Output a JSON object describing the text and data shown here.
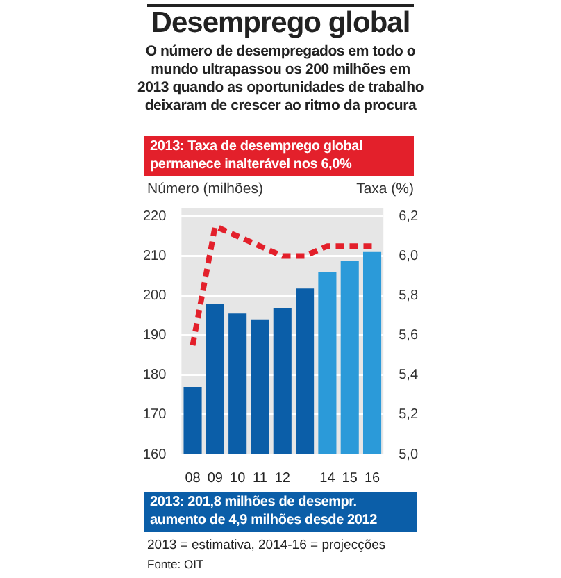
{
  "chart_data": {
    "type": "bar",
    "title": "Desemprego global",
    "subtitle": "O número de desempregados em todo o mundo ultrapassou os 200 milhões em 2013 quando as oportunidades de trabalho deixaram de crescer ao ritmo da procura",
    "ylabel": "Número (milhões)",
    "y2label": "Taxa (%)",
    "categories": [
      "08",
      "09",
      "10",
      "11",
      "12",
      null,
      "14",
      "15",
      "16"
    ],
    "series": [
      {
        "colors": [
          "#0b5ea8",
          "#0b5ea8",
          "#0b5ea8",
          "#0b5ea8",
          "#0b5ea8",
          "#0b5ea8",
          "#2b9ad9",
          "#2b9ad9",
          "#2b9ad9"
        ],
        "values": [
          177,
          198,
          195.5,
          194,
          196.9,
          201.8,
          206,
          208.7,
          211
        ]
      },
      {
        "type": "line",
        "axis": "y2",
        "color": "#e3202b",
        "line_style": "dashed",
        "values": [
          5.55,
          6.15,
          6.1,
          6.05,
          6.0,
          6.0,
          6.05,
          6.05,
          6.05
        ]
      }
    ],
    "ylim": [
      160,
      222
    ],
    "yticks": [
      160,
      170,
      180,
      190,
      200,
      210,
      220
    ],
    "y2lim": [
      5.0,
      6.24
    ],
    "y2ticks": [
      {
        "value": 5.0,
        "label": "5,0"
      },
      {
        "value": 5.2,
        "label": "5,2"
      },
      {
        "value": 5.4,
        "label": "5,4"
      },
      {
        "value": 5.6,
        "label": "5,6"
      },
      {
        "value": 5.8,
        "label": "5,8"
      },
      {
        "value": 6.0,
        "label": "6,0"
      },
      {
        "value": 6.2,
        "label": "6,2"
      }
    ],
    "grid": "y",
    "legend": false,
    "annotations": [
      "2013: Taxa de desemprego global permanece inalterável nos 6,0%",
      "2013: 201,8 milhões de desempr. aumento de 4,9 milhões desde 2012",
      "2013 = estimativa, 2014-16 = projecções",
      "Fonte: OIT"
    ]
  }
}
